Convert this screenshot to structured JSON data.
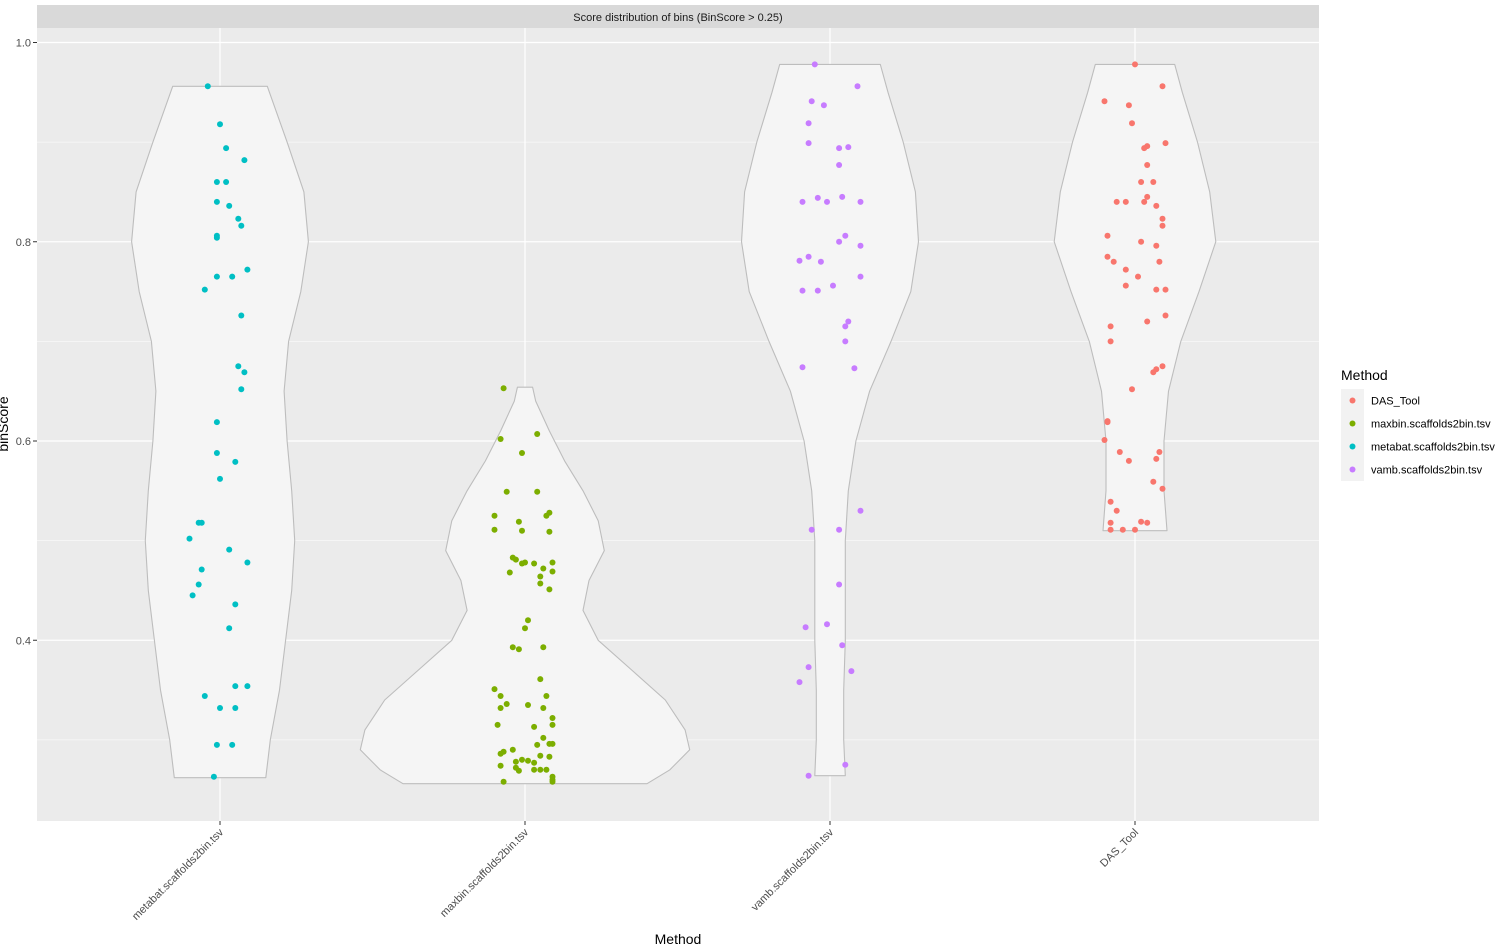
{
  "chart_data": {
    "type": "violin+jitter",
    "title": "Score distribution of bins (BinScore > 0.25)",
    "xlabel": "Method",
    "ylabel": "binScore",
    "ylim": [
      0.22,
      1.02
    ],
    "yticks": [
      0.4,
      0.6,
      0.8,
      1.0
    ],
    "ytick_labels": [
      "0.4",
      "0.6",
      "0.8",
      "1.0"
    ],
    "grid": true,
    "legend": {
      "title": "Method",
      "position": "right",
      "entries": [
        {
          "label": "DAS_Tool",
          "color": "#F8766D"
        },
        {
          "label": "maxbin.scaffolds2bin.tsv",
          "color": "#7CAE00"
        },
        {
          "label": "metabat.scaffolds2bin.tsv",
          "color": "#00BFC4"
        },
        {
          "label": "vamb.scaffolds2bin.tsv",
          "color": "#C77CFF"
        }
      ]
    },
    "categories": [
      "metabat.scaffolds2bin.tsv",
      "maxbin.scaffolds2bin.tsv",
      "vamb.scaffolds2bin.tsv",
      "DAS_Tool"
    ],
    "series": [
      {
        "name": "metabat.scaffolds2bin.tsv",
        "color": "#00BFC4",
        "violin": [
          [
            0.262,
            0.3
          ],
          [
            0.3,
            0.33
          ],
          [
            0.35,
            0.39
          ],
          [
            0.4,
            0.43
          ],
          [
            0.45,
            0.47
          ],
          [
            0.5,
            0.49
          ],
          [
            0.55,
            0.47
          ],
          [
            0.6,
            0.44
          ],
          [
            0.65,
            0.42
          ],
          [
            0.7,
            0.45
          ],
          [
            0.75,
            0.53
          ],
          [
            0.8,
            0.58
          ],
          [
            0.85,
            0.55
          ],
          [
            0.9,
            0.44
          ],
          [
            0.956,
            0.31
          ]
        ],
        "points": [
          [
            -0.04,
            0.956
          ],
          [
            0.0,
            0.918
          ],
          [
            0.02,
            0.894
          ],
          [
            0.08,
            0.882
          ],
          [
            -0.01,
            0.86
          ],
          [
            0.02,
            0.86
          ],
          [
            -0.01,
            0.84
          ],
          [
            0.03,
            0.836
          ],
          [
            0.06,
            0.823
          ],
          [
            0.07,
            0.816
          ],
          [
            -0.01,
            0.806
          ],
          [
            -0.01,
            0.804
          ],
          [
            0.09,
            0.772
          ],
          [
            -0.01,
            0.765
          ],
          [
            0.04,
            0.765
          ],
          [
            -0.05,
            0.752
          ],
          [
            0.07,
            0.726
          ],
          [
            0.06,
            0.675
          ],
          [
            0.08,
            0.669
          ],
          [
            0.07,
            0.652
          ],
          [
            -0.01,
            0.619
          ],
          [
            -0.01,
            0.588
          ],
          [
            0.05,
            0.579
          ],
          [
            0.0,
            0.562
          ],
          [
            -0.07,
            0.518
          ],
          [
            -0.06,
            0.518
          ],
          [
            -0.1,
            0.502
          ],
          [
            0.03,
            0.491
          ],
          [
            0.09,
            0.478
          ],
          [
            -0.06,
            0.471
          ],
          [
            -0.07,
            0.456
          ],
          [
            -0.09,
            0.445
          ],
          [
            0.05,
            0.436
          ],
          [
            0.03,
            0.412
          ],
          [
            0.05,
            0.354
          ],
          [
            0.09,
            0.354
          ],
          [
            -0.05,
            0.344
          ],
          [
            0.0,
            0.332
          ],
          [
            0.05,
            0.332
          ],
          [
            -0.01,
            0.295
          ],
          [
            0.04,
            0.295
          ],
          [
            -0.02,
            0.263
          ]
        ]
      },
      {
        "name": "maxbin.scaffolds2bin.tsv",
        "color": "#7CAE00",
        "violin": [
          [
            0.256,
            0.8
          ],
          [
            0.27,
            0.95
          ],
          [
            0.29,
            1.08
          ],
          [
            0.31,
            1.05
          ],
          [
            0.34,
            0.92
          ],
          [
            0.37,
            0.7
          ],
          [
            0.4,
            0.48
          ],
          [
            0.43,
            0.38
          ],
          [
            0.46,
            0.42
          ],
          [
            0.49,
            0.52
          ],
          [
            0.52,
            0.48
          ],
          [
            0.55,
            0.38
          ],
          [
            0.58,
            0.26
          ],
          [
            0.61,
            0.16
          ],
          [
            0.64,
            0.07
          ],
          [
            0.654,
            0.05
          ]
        ],
        "points": [
          [
            -0.07,
            0.653
          ],
          [
            0.04,
            0.607
          ],
          [
            -0.08,
            0.602
          ],
          [
            -0.01,
            0.588
          ],
          [
            -0.06,
            0.549
          ],
          [
            0.04,
            0.549
          ],
          [
            0.08,
            0.528
          ],
          [
            0.07,
            0.525
          ],
          [
            -0.1,
            0.525
          ],
          [
            -0.02,
            0.519
          ],
          [
            -0.01,
            0.51
          ],
          [
            0.08,
            0.509
          ],
          [
            -0.1,
            0.511
          ],
          [
            -0.04,
            0.483
          ],
          [
            -0.03,
            0.481
          ],
          [
            0.09,
            0.478
          ],
          [
            0.0,
            0.478
          ],
          [
            -0.01,
            0.477
          ],
          [
            0.03,
            0.477
          ],
          [
            0.06,
            0.472
          ],
          [
            0.09,
            0.469
          ],
          [
            -0.05,
            0.468
          ],
          [
            0.05,
            0.464
          ],
          [
            0.05,
            0.457
          ],
          [
            0.08,
            0.451
          ],
          [
            0.01,
            0.42
          ],
          [
            0.0,
            0.412
          ],
          [
            -0.04,
            0.393
          ],
          [
            0.06,
            0.393
          ],
          [
            -0.02,
            0.391
          ],
          [
            0.05,
            0.361
          ],
          [
            -0.1,
            0.351
          ],
          [
            -0.08,
            0.344
          ],
          [
            0.07,
            0.344
          ],
          [
            -0.06,
            0.336
          ],
          [
            0.01,
            0.335
          ],
          [
            -0.08,
            0.332
          ],
          [
            0.06,
            0.332
          ],
          [
            0.09,
            0.322
          ],
          [
            -0.09,
            0.315
          ],
          [
            0.03,
            0.313
          ],
          [
            0.09,
            0.315
          ],
          [
            0.06,
            0.302
          ],
          [
            0.09,
            0.296
          ],
          [
            0.08,
            0.296
          ],
          [
            0.04,
            0.295
          ],
          [
            -0.04,
            0.29
          ],
          [
            -0.07,
            0.288
          ],
          [
            -0.08,
            0.286
          ],
          [
            0.05,
            0.284
          ],
          [
            0.08,
            0.283
          ],
          [
            -0.01,
            0.28
          ],
          [
            0.01,
            0.279
          ],
          [
            -0.03,
            0.278
          ],
          [
            0.03,
            0.277
          ],
          [
            -0.08,
            0.274
          ],
          [
            -0.03,
            0.272
          ],
          [
            0.03,
            0.27
          ],
          [
            0.05,
            0.27
          ],
          [
            0.07,
            0.27
          ],
          [
            -0.02,
            0.269
          ],
          [
            0.09,
            0.263
          ],
          [
            0.09,
            0.26
          ],
          [
            -0.07,
            0.258
          ],
          [
            0.09,
            0.258
          ]
        ]
      },
      {
        "name": "vamb.scaffolds2bin.tsv",
        "color": "#C77CFF",
        "violin": [
          [
            0.264,
            0.1
          ],
          [
            0.3,
            0.09
          ],
          [
            0.35,
            0.09
          ],
          [
            0.4,
            0.1
          ],
          [
            0.45,
            0.1
          ],
          [
            0.5,
            0.1
          ],
          [
            0.55,
            0.12
          ],
          [
            0.6,
            0.17
          ],
          [
            0.65,
            0.26
          ],
          [
            0.7,
            0.4
          ],
          [
            0.75,
            0.53
          ],
          [
            0.8,
            0.58
          ],
          [
            0.85,
            0.56
          ],
          [
            0.9,
            0.48
          ],
          [
            0.95,
            0.38
          ],
          [
            0.978,
            0.33
          ]
        ],
        "points": [
          [
            -0.05,
            0.978
          ],
          [
            0.09,
            0.956
          ],
          [
            -0.06,
            0.941
          ],
          [
            -0.02,
            0.937
          ],
          [
            -0.07,
            0.919
          ],
          [
            -0.07,
            0.899
          ],
          [
            0.06,
            0.895
          ],
          [
            0.03,
            0.894
          ],
          [
            0.03,
            0.877
          ],
          [
            0.04,
            0.845
          ],
          [
            -0.04,
            0.844
          ],
          [
            -0.09,
            0.84
          ],
          [
            0.1,
            0.84
          ],
          [
            -0.01,
            0.84
          ],
          [
            0.05,
            0.806
          ],
          [
            0.03,
            0.8
          ],
          [
            0.1,
            0.796
          ],
          [
            -0.07,
            0.785
          ],
          [
            -0.1,
            0.781
          ],
          [
            -0.03,
            0.78
          ],
          [
            0.1,
            0.765
          ],
          [
            0.01,
            0.756
          ],
          [
            -0.09,
            0.751
          ],
          [
            -0.04,
            0.751
          ],
          [
            0.06,
            0.72
          ],
          [
            0.05,
            0.715
          ],
          [
            0.05,
            0.7
          ],
          [
            -0.09,
            0.674
          ],
          [
            0.08,
            0.673
          ],
          [
            0.1,
            0.53
          ],
          [
            -0.06,
            0.511
          ],
          [
            0.03,
            0.511
          ],
          [
            0.03,
            0.456
          ],
          [
            -0.01,
            0.416
          ],
          [
            -0.08,
            0.413
          ],
          [
            0.04,
            0.395
          ],
          [
            -0.07,
            0.373
          ],
          [
            0.07,
            0.369
          ],
          [
            -0.1,
            0.358
          ],
          [
            0.05,
            0.275
          ],
          [
            -0.07,
            0.264
          ]
        ]
      },
      {
        "name": "DAS_Tool",
        "color": "#F8766D",
        "violin": [
          [
            0.51,
            0.21
          ],
          [
            0.55,
            0.19
          ],
          [
            0.6,
            0.19
          ],
          [
            0.65,
            0.22
          ],
          [
            0.7,
            0.3
          ],
          [
            0.75,
            0.42
          ],
          [
            0.8,
            0.53
          ],
          [
            0.85,
            0.49
          ],
          [
            0.9,
            0.41
          ],
          [
            0.95,
            0.31
          ],
          [
            0.978,
            0.26
          ]
        ],
        "points": [
          [
            0.0,
            0.978
          ],
          [
            0.09,
            0.956
          ],
          [
            -0.1,
            0.941
          ],
          [
            -0.02,
            0.937
          ],
          [
            0.1,
            0.899
          ],
          [
            0.04,
            0.896
          ],
          [
            0.03,
            0.894
          ],
          [
            -0.01,
            0.919
          ],
          [
            0.04,
            0.877
          ],
          [
            0.06,
            0.86
          ],
          [
            0.02,
            0.86
          ],
          [
            0.04,
            0.845
          ],
          [
            0.03,
            0.84
          ],
          [
            -0.06,
            0.84
          ],
          [
            -0.03,
            0.84
          ],
          [
            0.07,
            0.836
          ],
          [
            0.09,
            0.823
          ],
          [
            0.09,
            0.816
          ],
          [
            -0.09,
            0.806
          ],
          [
            0.02,
            0.8
          ],
          [
            0.07,
            0.796
          ],
          [
            -0.09,
            0.785
          ],
          [
            -0.07,
            0.78
          ],
          [
            0.08,
            0.78
          ],
          [
            -0.03,
            0.772
          ],
          [
            0.01,
            0.765
          ],
          [
            -0.03,
            0.756
          ],
          [
            0.07,
            0.752
          ],
          [
            0.1,
            0.752
          ],
          [
            0.1,
            0.726
          ],
          [
            0.04,
            0.72
          ],
          [
            -0.08,
            0.715
          ],
          [
            -0.08,
            0.7
          ],
          [
            0.09,
            0.675
          ],
          [
            0.07,
            0.672
          ],
          [
            0.06,
            0.669
          ],
          [
            -0.01,
            0.652
          ],
          [
            -0.09,
            0.62
          ],
          [
            -0.09,
            0.619
          ],
          [
            -0.1,
            0.601
          ],
          [
            0.08,
            0.589
          ],
          [
            -0.05,
            0.589
          ],
          [
            0.07,
            0.582
          ],
          [
            -0.02,
            0.58
          ],
          [
            0.06,
            0.559
          ],
          [
            0.09,
            0.552
          ],
          [
            -0.08,
            0.539
          ],
          [
            -0.06,
            0.53
          ],
          [
            0.02,
            0.519
          ],
          [
            0.04,
            0.518
          ],
          [
            -0.08,
            0.518
          ],
          [
            -0.08,
            0.511
          ],
          [
            -0.04,
            0.511
          ],
          [
            0.0,
            0.511
          ]
        ]
      }
    ]
  }
}
